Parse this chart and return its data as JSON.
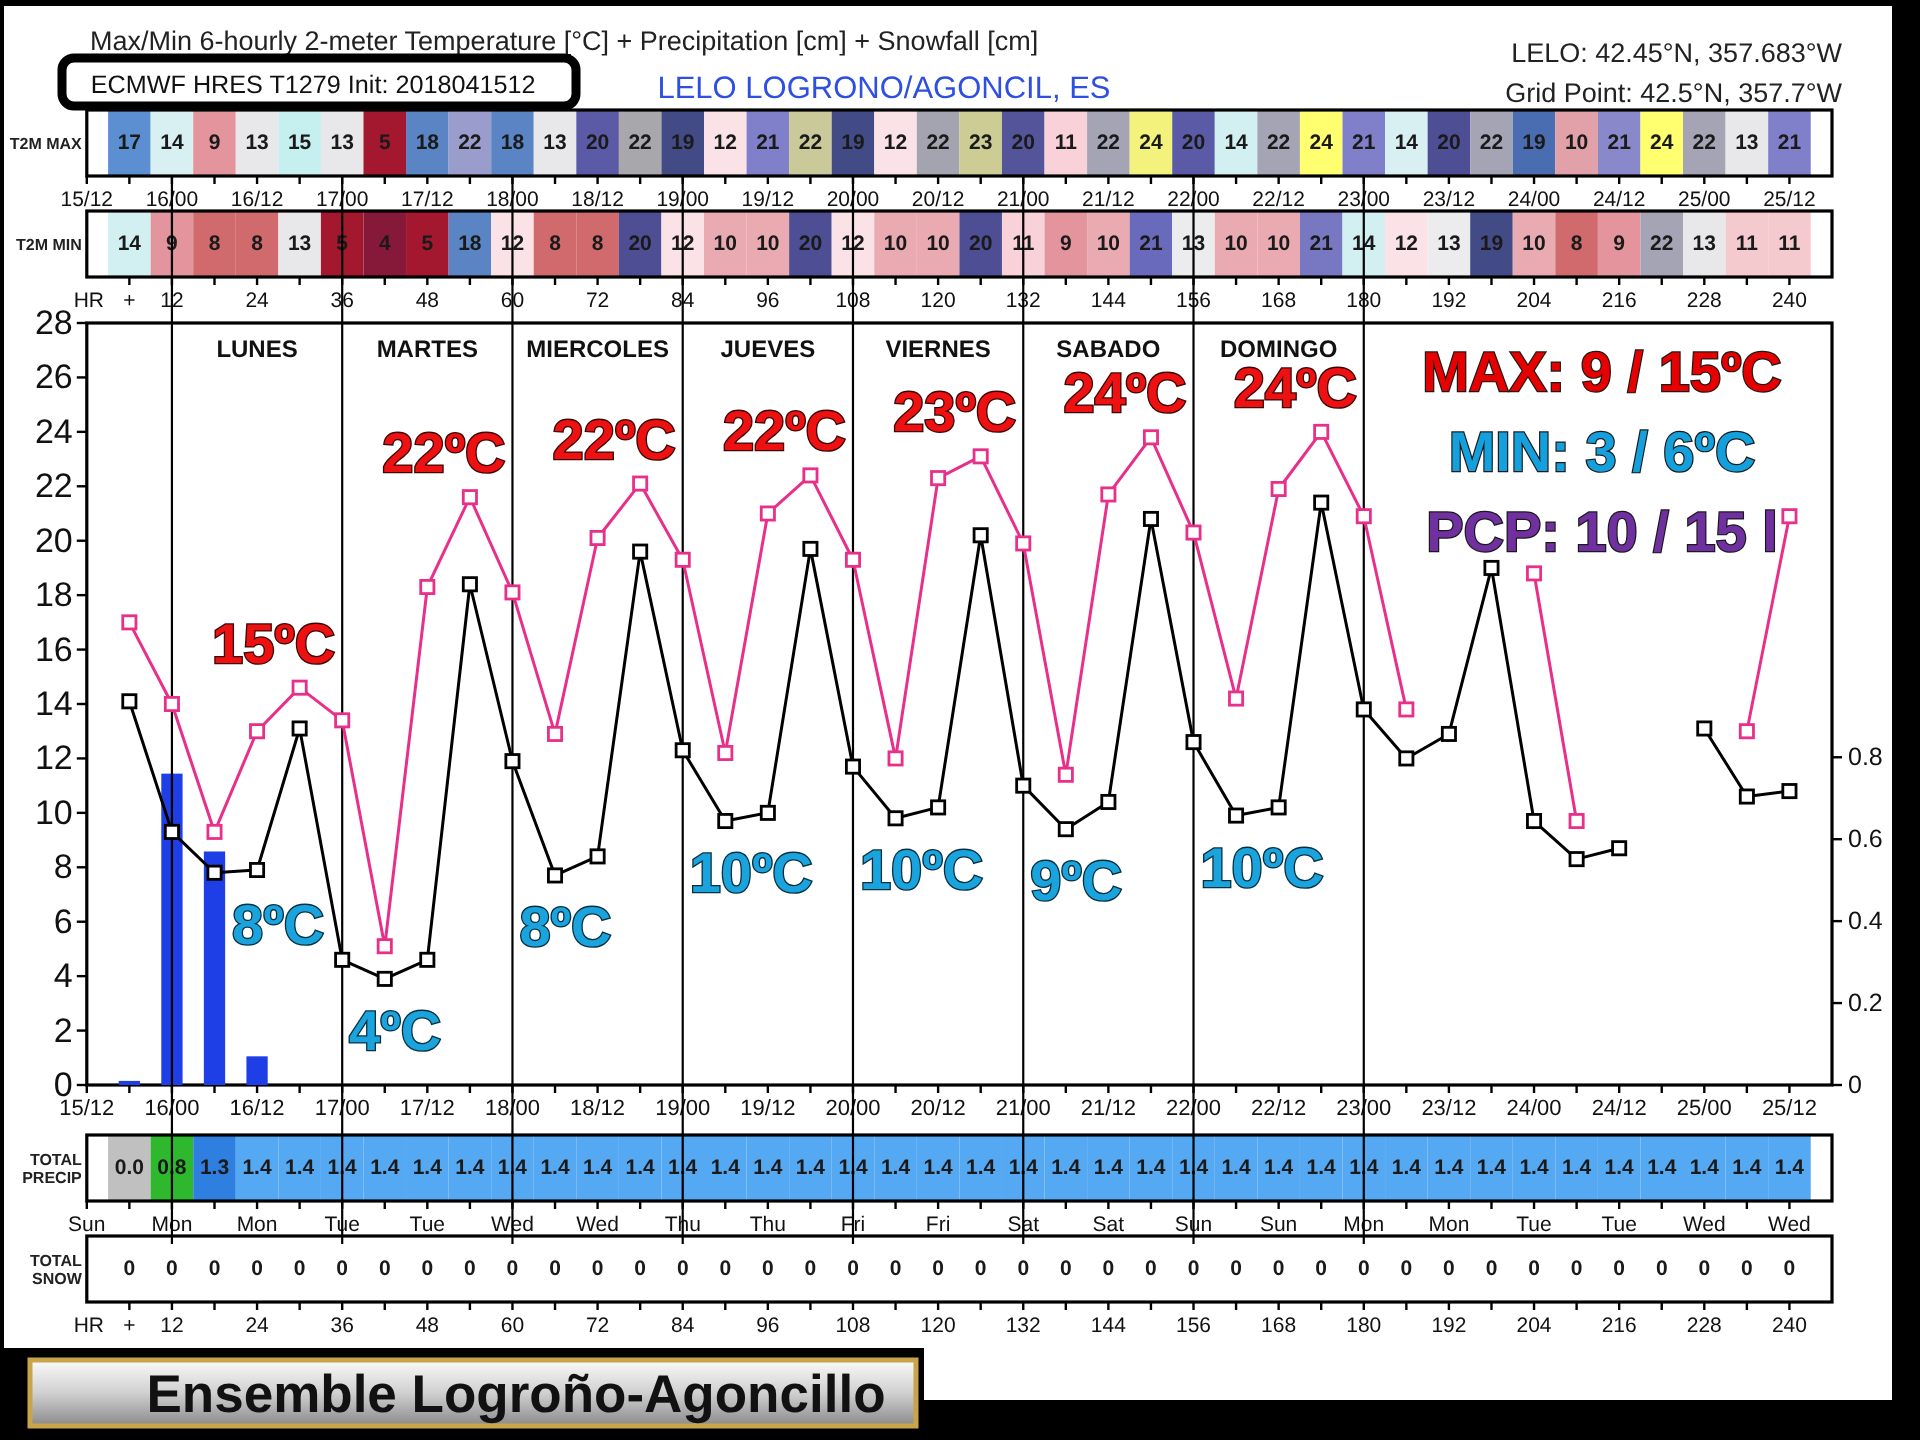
{
  "chart_data": [
    {
      "type": "heatmap",
      "title": "Max/Min 6-hourly 2-meter Temperature [°C] + Precipitation [cm] + Snowfall [cm]",
      "subtitle": "ECMWF HRES T1279 Init: 2018041512",
      "annotations": [
        "LELO LOGRONO/AGONCIL, ES",
        "LELO: 42.45°N, 357.683°W",
        "Grid Point: 42.5°N, 357.7°W"
      ],
      "y_categories": [
        "T2M MAX"
      ],
      "categories": [
        "15/12",
        null,
        "16/00",
        null,
        "16/12",
        null,
        "17/00",
        null,
        "17/12",
        null,
        "18/00",
        null,
        "18/12",
        null,
        "19/00",
        null,
        "19/12",
        null,
        "20/00",
        null,
        "20/12",
        null,
        "21/00",
        null,
        "21/12",
        null,
        "22/00",
        null,
        "22/12",
        null,
        "23/00",
        null,
        "23/12",
        null,
        "24/00",
        null,
        "24/12",
        null,
        "25/00",
        null,
        "25/12"
      ],
      "cells": [
        [
          null,
          17,
          14,
          9,
          13,
          15,
          13,
          5,
          18,
          22,
          18,
          13,
          20,
          22,
          19,
          12,
          21,
          22,
          19,
          12,
          22,
          23,
          20,
          11,
          22,
          24,
          20,
          14,
          22,
          24,
          21,
          14,
          20,
          22,
          19,
          10,
          21,
          24,
          22,
          13,
          21
        ]
      ],
      "colors": [
        [
          null,
          "#5b8fd2",
          "#d8f0f2",
          "#e3949c",
          "#e8e8ea",
          "#c6eff0",
          "#e8e8ea",
          "#a3182e",
          "#5a84c4",
          "#9a9ccc",
          "#5a84c4",
          "#e8e8ea",
          "#5a5aa6",
          "#a8a8ac",
          "#434b86",
          "#fae2e6",
          "#8080ca",
          "#c9c99a",
          "#434b86",
          "#fae2e6",
          "#a4a4b0",
          "#cccc94",
          "#54549a",
          "#f8d2d8",
          "#a4a4b4",
          "#f2f27c",
          "#5a5aa6",
          "#d2f0f2",
          "#a4a4b4",
          "#ffff70",
          "#8080ca",
          "#d8f0f2",
          "#4e4e94",
          "#a4a4b4",
          "#4a6cb0",
          "#e2a0a8",
          "#8888ca",
          "#ffff70",
          "#a4a4b4",
          "#e8e8ea",
          "#8080ca"
        ]
      ],
      "data_labels": true
    },
    {
      "type": "heatmap",
      "y_categories": [
        "T2M MIN"
      ],
      "x": [
        6,
        12,
        18,
        24,
        30,
        36,
        42,
        48,
        54,
        60,
        66,
        72,
        78,
        84,
        90,
        96,
        102,
        108,
        114,
        120,
        126,
        132,
        138,
        144,
        150,
        156,
        162,
        168,
        174,
        180,
        186,
        192,
        198,
        204,
        210,
        216,
        222,
        228,
        234,
        240
      ],
      "xlim": [
        0,
        246
      ],
      "xlabel": "HR",
      "xticks": [
        {
          "value": 6,
          "label": "+"
        },
        12,
        {
          "value": 18,
          "label": null
        },
        24,
        {
          "value": 30,
          "label": null
        },
        36,
        {
          "value": 42,
          "label": null
        },
        48,
        {
          "value": 54,
          "label": null
        },
        60,
        {
          "value": 66,
          "label": null
        },
        72,
        {
          "value": 78,
          "label": null
        },
        84,
        {
          "value": 90,
          "label": null
        },
        96,
        {
          "value": 102,
          "label": null
        },
        108,
        {
          "value": 114,
          "label": null
        },
        120,
        {
          "value": 126,
          "label": null
        },
        132,
        {
          "value": 138,
          "label": null
        },
        144,
        {
          "value": 150,
          "label": null
        },
        156,
        {
          "value": 162,
          "label": null
        },
        168,
        {
          "value": 174,
          "label": null
        },
        180,
        {
          "value": 186,
          "label": null
        },
        192,
        {
          "value": 198,
          "label": null
        },
        204,
        {
          "value": 210,
          "label": null
        },
        216,
        {
          "value": 222,
          "label": null
        },
        228,
        {
          "value": 234,
          "label": null
        },
        240
      ],
      "cells": [
        [
          14,
          9,
          8,
          8,
          13,
          5,
          4,
          5,
          18,
          12,
          8,
          8,
          20,
          12,
          10,
          10,
          20,
          12,
          10,
          10,
          20,
          11,
          9,
          10,
          21,
          13,
          10,
          10,
          21,
          14,
          12,
          13,
          19,
          10,
          8,
          9,
          22,
          13,
          11,
          11
        ]
      ],
      "colors": [
        [
          "#d2f0f2",
          "#e3949c",
          "#d06a6c",
          "#d06a6c",
          "#e8e8ea",
          "#a3182e",
          "#86183a",
          "#a3182e",
          "#5a84c4",
          "#fae2e6",
          "#d06a6c",
          "#d06a6c",
          "#4e4e94",
          "#fae2e6",
          "#eaaab2",
          "#eaaab2",
          "#4e4e94",
          "#fae2e6",
          "#eaaab2",
          "#eaaab2",
          "#4e4e94",
          "#f8d2d8",
          "#e3949c",
          "#eaaab2",
          "#6a6abc",
          "#ececee",
          "#eaaab2",
          "#eaaab2",
          "#7878c2",
          "#d2f0f2",
          "#fae2e6",
          "#ececee",
          "#434b86",
          "#eaaab2",
          "#d06a6c",
          "#e3949c",
          "#a4a4b4",
          "#e8e8ea",
          "#f4cace",
          "#f4cace"
        ]
      ],
      "data_labels": true
    },
    {
      "type": "line",
      "categories": [
        "15/12",
        null,
        "16/00",
        null,
        "16/12",
        null,
        "17/00",
        null,
        "17/12",
        null,
        "18/00",
        null,
        "18/12",
        null,
        "19/00",
        null,
        "19/12",
        null,
        "20/00",
        null,
        "20/12",
        null,
        "21/00",
        null,
        "21/12",
        null,
        "22/00",
        null,
        "22/12",
        null,
        "23/00",
        null,
        "23/12",
        null,
        "24/00",
        null,
        "24/12",
        null,
        "25/00",
        null,
        "25/12"
      ],
      "ylim": [
        0,
        28
      ],
      "yticks": [
        0,
        2,
        4,
        6,
        8,
        10,
        12,
        14,
        16,
        18,
        20,
        22,
        24,
        26,
        28
      ],
      "y2lim": [
        0,
        1.86
      ],
      "y2ticks": [
        0,
        0.2,
        0.4,
        0.6,
        0.8
      ],
      "marker": "square",
      "series": [
        {
          "color": "#e8308a",
          "values": [
            null,
            17.0,
            14.0,
            9.3,
            13.0,
            14.6,
            13.4,
            5.1,
            18.3,
            21.6,
            18.1,
            12.9,
            20.1,
            22.1,
            19.3,
            12.2,
            21.0,
            22.4,
            19.3,
            12.0,
            22.3,
            23.1,
            19.9,
            11.4,
            21.7,
            23.8,
            20.3,
            14.2,
            21.9,
            24.0,
            20.9,
            13.8,
            null,
            null,
            18.8,
            9.7,
            null,
            null,
            null,
            13.0,
            20.9
          ],
          "value_labels": [
            null,
            null,
            null,
            null,
            null,
            "15ºC",
            null,
            null,
            null,
            "22ºC",
            null,
            null,
            null,
            "22ºC",
            null,
            null,
            null,
            "22ºC",
            null,
            null,
            null,
            "23ºC",
            null,
            null,
            null,
            "24ºC",
            null,
            null,
            null,
            "24ºC",
            null,
            null,
            null,
            null,
            null,
            null,
            null,
            null,
            null,
            null,
            null
          ]
        },
        {
          "color": "#000000",
          "values": [
            null,
            14.1,
            9.3,
            7.8,
            7.9,
            13.1,
            4.6,
            3.9,
            4.6,
            18.4,
            11.9,
            7.7,
            8.4,
            19.6,
            12.3,
            9.7,
            10.0,
            19.7,
            11.7,
            9.8,
            10.2,
            20.2,
            11.0,
            9.4,
            10.4,
            20.8,
            12.6,
            9.9,
            10.2,
            21.4,
            13.8,
            12.0,
            12.9,
            19.0,
            9.7,
            8.3,
            8.7,
            null,
            13.1,
            10.6,
            10.8
          ],
          "value_labels": [
            null,
            null,
            null,
            "8ºC",
            null,
            null,
            null,
            "4ºC",
            null,
            null,
            null,
            "8ºC",
            null,
            null,
            null,
            "10ºC",
            null,
            null,
            null,
            "10ºC",
            null,
            null,
            null,
            "9ºC",
            null,
            null,
            null,
            "10ºC",
            null,
            null,
            null,
            null,
            null,
            null,
            null,
            null,
            null,
            null,
            null,
            null,
            null
          ]
        },
        {
          "type": "bar",
          "axis": "y2",
          "color": "#1f3fe6",
          "values": [
            null,
            0.01,
            0.76,
            0.57,
            0.07,
            null,
            null,
            null,
            null,
            null,
            null,
            null,
            null,
            null,
            null,
            null,
            null,
            null,
            null,
            null,
            null,
            null,
            null,
            null,
            null,
            null,
            null,
            null,
            null,
            null,
            null,
            null,
            null,
            null,
            null,
            null,
            null,
            null,
            null,
            null,
            null
          ]
        }
      ],
      "ref_lines": [
        {
          "axis": "x",
          "value": "16/00",
          "label": "LUNES"
        },
        {
          "axis": "x",
          "value": "17/00",
          "label": "MARTES"
        },
        {
          "axis": "x",
          "value": "18/00",
          "label": "MIERCOLES"
        },
        {
          "axis": "x",
          "value": "19/00",
          "label": "JUEVES"
        },
        {
          "axis": "x",
          "value": "20/00",
          "label": "VIERNES"
        },
        {
          "axis": "x",
          "value": "21/00",
          "label": "SABADO"
        },
        {
          "axis": "x",
          "value": "22/00",
          "label": "DOMINGO"
        },
        {
          "axis": "x",
          "value": "23/00"
        }
      ],
      "annotations": [
        "MAX: 9 / 15ºC",
        "MIN: 3 / 6ºC",
        "PCP: 10 / 15 l"
      ]
    },
    {
      "type": "heatmap",
      "y_categories": [
        "TOTAL PRECIP"
      ],
      "categories": [
        "Sun",
        null,
        "Mon",
        null,
        "Mon",
        null,
        "Tue",
        null,
        "Tue",
        null,
        "Wed",
        null,
        "Wed",
        null,
        "Thu",
        null,
        "Thu",
        null,
        "Fri",
        null,
        "Fri",
        null,
        "Sat",
        null,
        "Sat",
        null,
        "Sun",
        null,
        "Sun",
        null,
        "Mon",
        null,
        "Mon",
        null,
        "Tue",
        null,
        "Tue",
        null,
        "Wed",
        null,
        "Wed"
      ],
      "cells": [
        [
          null,
          0,
          0.8,
          1.3,
          1.4,
          1.4,
          1.4,
          1.4,
          1.4,
          1.4,
          1.4,
          1.4,
          1.4,
          1.4,
          1.4,
          1.4,
          1.4,
          1.4,
          1.4,
          1.4,
          1.4,
          1.4,
          1.4,
          1.4,
          1.4,
          1.4,
          1.4,
          1.4,
          1.4,
          1.4,
          1.4,
          1.4,
          1.4,
          1.4,
          1.4,
          1.4,
          1.4,
          1.4,
          1.4,
          1.4,
          1.4
        ]
      ],
      "cell_labels": [
        [
          null,
          "0.0",
          "0.8",
          "1.3",
          "1.4",
          "1.4",
          "1.4",
          "1.4",
          "1.4",
          "1.4",
          "1.4",
          "1.4",
          "1.4",
          "1.4",
          "1.4",
          "1.4",
          "1.4",
          "1.4",
          "1.4",
          "1.4",
          "1.4",
          "1.4",
          "1.4",
          "1.4",
          "1.4",
          "1.4",
          "1.4",
          "1.4",
          "1.4",
          "1.4",
          "1.4",
          "1.4",
          "1.4",
          "1.4",
          "1.4",
          "1.4",
          "1.4",
          "1.4",
          "1.4",
          "1.4",
          "1.4"
        ]
      ],
      "colors": [
        [
          null,
          "#c0c0c0",
          "#2db82d",
          "#2e7fe0",
          "#55a8f2",
          "#55a8f2",
          "#55a8f2",
          "#55a8f2",
          "#55a8f2",
          "#55a8f2",
          "#55a8f2",
          "#55a8f2",
          "#55a8f2",
          "#55a8f2",
          "#55a8f2",
          "#55a8f2",
          "#55a8f2",
          "#55a8f2",
          "#55a8f2",
          "#55a8f2",
          "#55a8f2",
          "#55a8f2",
          "#55a8f2",
          "#55a8f2",
          "#55a8f2",
          "#55a8f2",
          "#55a8f2",
          "#55a8f2",
          "#55a8f2",
          "#55a8f2",
          "#55a8f2",
          "#55a8f2",
          "#55a8f2",
          "#55a8f2",
          "#55a8f2",
          "#55a8f2",
          "#55a8f2",
          "#55a8f2",
          "#55a8f2",
          "#55a8f2",
          "#55a8f2"
        ]
      ]
    },
    {
      "type": "heatmap",
      "y_categories": [
        "TOTAL SNOW"
      ],
      "x": [
        6,
        12,
        18,
        24,
        30,
        36,
        42,
        48,
        54,
        60,
        66,
        72,
        78,
        84,
        90,
        96,
        102,
        108,
        114,
        120,
        126,
        132,
        138,
        144,
        150,
        156,
        162,
        168,
        174,
        180,
        186,
        192,
        198,
        204,
        210,
        216,
        222,
        228,
        234,
        240
      ],
      "xlim": [
        0,
        246
      ],
      "xlabel": "HR",
      "xticks": [
        {
          "value": 6,
          "label": "+"
        },
        12,
        {
          "value": 18,
          "label": null
        },
        24,
        {
          "value": 30,
          "label": null
        },
        36,
        {
          "value": 42,
          "label": null
        },
        48,
        {
          "value": 54,
          "label": null
        },
        60,
        {
          "value": 66,
          "label": null
        },
        72,
        {
          "value": 78,
          "label": null
        },
        84,
        {
          "value": 90,
          "label": null
        },
        96,
        {
          "value": 102,
          "label": null
        },
        108,
        {
          "value": 114,
          "label": null
        },
        120,
        {
          "value": 126,
          "label": null
        },
        132,
        {
          "value": 138,
          "label": null
        },
        144,
        {
          "value": 150,
          "label": null
        },
        156,
        {
          "value": 162,
          "label": null
        },
        168,
        {
          "value": 174,
          "label": null
        },
        180,
        {
          "value": 186,
          "label": null
        },
        192,
        {
          "value": 198,
          "label": null
        },
        204,
        {
          "value": 210,
          "label": null
        },
        216,
        {
          "value": 222,
          "label": null
        },
        228,
        {
          "value": 234,
          "label": null
        },
        240
      ],
      "cells": [
        [
          0,
          0,
          0,
          0,
          0,
          0,
          0,
          0,
          0,
          0,
          0,
          0,
          0,
          0,
          0,
          0,
          0,
          0,
          0,
          0,
          0,
          0,
          0,
          0,
          0,
          0,
          0,
          0,
          0,
          0,
          0,
          0,
          0,
          0,
          0,
          0,
          0,
          0,
          0,
          0
        ]
      ],
      "data_labels": true,
      "annotations": [
        "Ensemble Logroño-Agoncillo"
      ]
    }
  ]
}
